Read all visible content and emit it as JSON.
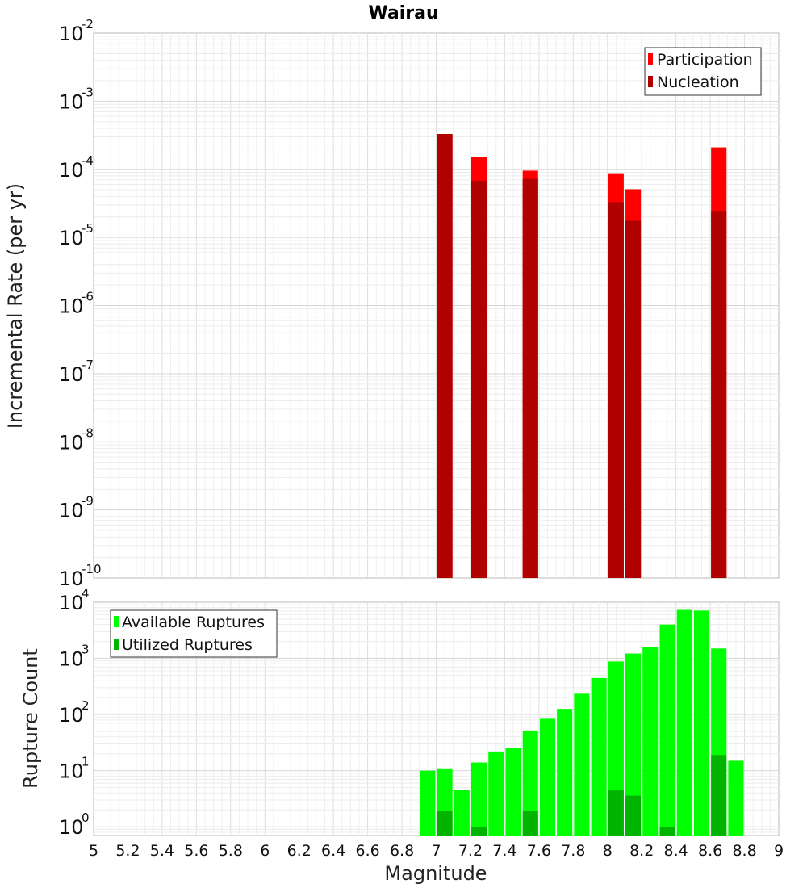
{
  "chart_data": [
    {
      "type": "bar",
      "title": "Wairau",
      "xlabel": "",
      "ylabel": "Incremental Rate (per yr)",
      "yscale": "log",
      "ylim": [
        1e-10,
        0.01
      ],
      "xlim": [
        5,
        9
      ],
      "ytick_base": "10",
      "ytick_exponents": [
        "-10",
        "-9",
        "-8",
        "-7",
        "-6",
        "-5",
        "-4",
        "-3",
        "-2"
      ],
      "grid": true,
      "legend": "top-right",
      "bar_width": 0.09,
      "series": [
        {
          "name": "Participation",
          "color": "#ff0000",
          "x": [
            7.05,
            7.25,
            7.55,
            8.05,
            8.15,
            8.65
          ],
          "values": [
            0.00033,
            0.00015,
            9.55e-05,
            8.75e-05,
            5.1e-05,
            0.00021
          ]
        },
        {
          "name": "Nucleation",
          "color": "#b00000",
          "x": [
            7.05,
            7.25,
            7.55,
            8.05,
            8.15,
            8.65
          ],
          "values": [
            0.00033,
            6.8e-05,
            7.2e-05,
            3.3e-05,
            1.75e-05,
            2.45e-05
          ]
        }
      ]
    },
    {
      "type": "bar",
      "title": "",
      "xlabel": "Magnitude",
      "ylabel": "Rupture Count",
      "yscale": "log",
      "ylim": [
        0.7,
        10000
      ],
      "xlim": [
        5,
        9
      ],
      "ytick_base": "10",
      "ytick_exponents": [
        "0",
        "1",
        "2",
        "3",
        "4"
      ],
      "xticks": [
        "5",
        "5.2",
        "5.4",
        "5.6",
        "5.8",
        "6",
        "6.2",
        "6.4",
        "6.6",
        "6.8",
        "7",
        "7.2",
        "7.4",
        "7.6",
        "7.8",
        "8",
        "8.2",
        "8.4",
        "8.6",
        "8.8",
        "9"
      ],
      "grid": true,
      "legend": "top-left",
      "bar_width": 0.09,
      "series": [
        {
          "name": "Available Ruptures",
          "color": "#00ff00",
          "x": [
            6.95,
            7.05,
            7.15,
            7.25,
            7.35,
            7.45,
            7.55,
            7.65,
            7.75,
            7.85,
            7.95,
            8.05,
            8.15,
            8.25,
            8.35,
            8.45,
            8.55,
            8.65,
            8.75
          ],
          "values": [
            10,
            11,
            4.6,
            14,
            22,
            25,
            52,
            84,
            126,
            235,
            447,
            880,
            1220,
            1580,
            4000,
            7300,
            7100,
            1500,
            15
          ]
        },
        {
          "name": "Utilized Ruptures",
          "color": "#00b400",
          "x": [
            7.05,
            7.25,
            7.55,
            8.05,
            8.15,
            8.35,
            8.65
          ],
          "values": [
            1.9,
            1,
            1.9,
            4.6,
            3.6,
            1,
            19
          ]
        }
      ]
    }
  ]
}
